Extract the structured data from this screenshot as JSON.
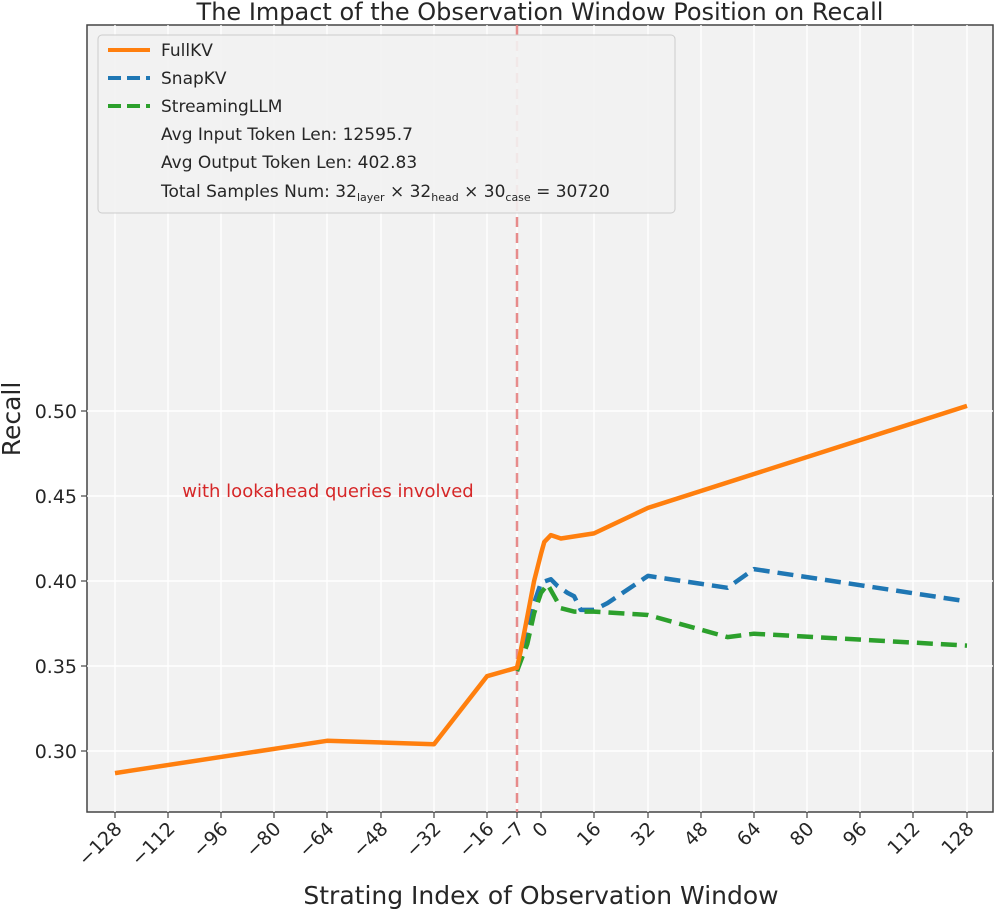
{
  "chart_data": {
    "type": "line",
    "title": "The Impact of the Observation Window Position on Recall",
    "xlabel": "Strating Index of Observation Window",
    "ylabel": "Recall",
    "ylim": [
      0.283,
      0.515
    ],
    "yticks": [
      0.3,
      0.35,
      0.4,
      0.45,
      0.5
    ],
    "xtick_labels": [
      "−128",
      "−112",
      "−96",
      "−80",
      "−64",
      "−48",
      "−32",
      "−16",
      "−7",
      "0",
      "16",
      "32",
      "48",
      "64",
      "80",
      "96",
      "112",
      "128"
    ],
    "grid": true,
    "legend_position": "top-left",
    "annotation": "with lookahead queries involved",
    "vline_x": -7,
    "series": [
      {
        "name": "FullKV",
        "color": "#ff7f0e",
        "style": "solid",
        "points": [
          [
            -128,
            0.287
          ],
          [
            -64,
            0.306
          ],
          [
            -32,
            0.304
          ],
          [
            -16,
            0.344
          ],
          [
            -7,
            0.349
          ],
          [
            -6,
            0.358
          ],
          [
            -4,
            0.379
          ],
          [
            -2,
            0.4
          ],
          [
            0,
            0.416
          ],
          [
            1,
            0.423
          ],
          [
            3,
            0.427
          ],
          [
            6,
            0.425
          ],
          [
            16,
            0.428
          ],
          [
            32,
            0.443
          ],
          [
            128,
            0.503
          ]
        ]
      },
      {
        "name": "SnapKV",
        "color": "#1f77b4",
        "style": "dashed",
        "points": [
          [
            -7,
            0.347
          ],
          [
            -4,
            0.368
          ],
          [
            -2,
            0.387
          ],
          [
            0,
            0.399
          ],
          [
            3,
            0.401
          ],
          [
            5,
            0.397
          ],
          [
            8,
            0.393
          ],
          [
            10,
            0.391
          ],
          [
            12,
            0.383
          ],
          [
            16,
            0.383
          ],
          [
            20,
            0.387
          ],
          [
            32,
            0.403
          ],
          [
            56,
            0.396
          ],
          [
            64,
            0.407
          ],
          [
            128,
            0.388
          ]
        ]
      },
      {
        "name": "StreamingLLM",
        "color": "#2ca02c",
        "style": "dashed",
        "points": [
          [
            -7,
            0.347
          ],
          [
            -4,
            0.363
          ],
          [
            -2,
            0.381
          ],
          [
            0,
            0.393
          ],
          [
            2,
            0.398
          ],
          [
            4,
            0.391
          ],
          [
            6,
            0.384
          ],
          [
            10,
            0.382
          ],
          [
            16,
            0.382
          ],
          [
            32,
            0.38
          ],
          [
            56,
            0.367
          ],
          [
            64,
            0.369
          ],
          [
            128,
            0.362
          ]
        ]
      }
    ],
    "legend_notes": {
      "avg_input": "Avg Input Token Len: 12595.7",
      "avg_output": "Avg Output Token Len: 402.83",
      "total_prefix": "Total Samples Num: 32",
      "layer_sub": "layer",
      "times_a": " × 32",
      "head_sub": "head",
      "times_b": " × 30",
      "case_sub": "case",
      "total_suffix": " = 30720"
    }
  }
}
